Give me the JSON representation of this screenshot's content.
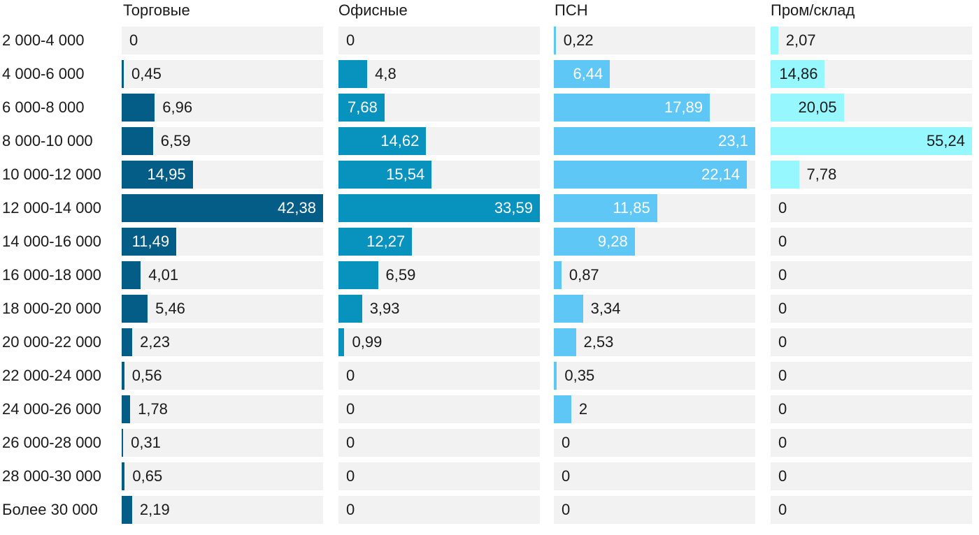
{
  "chart_data": {
    "type": "bar",
    "orientation": "horizontal",
    "title": "",
    "xlabel": "",
    "ylabel": "",
    "categories": [
      "2 000-4 000",
      "4 000-6 000",
      "6 000-8 000",
      "8 000-10 000",
      "10 000-12 000",
      "12 000-14 000",
      "14 000-16 000",
      "16 000-18 000",
      "18 000-20 000",
      "20 000-22 000",
      "22 000-24 000",
      "24 000-26 000",
      "26 000-28 000",
      "28 000-30 000",
      "Более 30 000"
    ],
    "series": [
      {
        "name": "Торговые",
        "color": "#035d87",
        "max": 42.38,
        "values": [
          0,
          0.45,
          6.96,
          6.59,
          14.95,
          42.38,
          11.49,
          4.01,
          5.46,
          2.23,
          0.56,
          1.78,
          0.31,
          0.65,
          2.19
        ],
        "labels": [
          "0",
          "0,45",
          "6,96",
          "6,59",
          "14,95",
          "42,38",
          "11,49",
          "4,01",
          "5,46",
          "2,23",
          "0,56",
          "1,78",
          "0,31",
          "0,65",
          "2,19"
        ]
      },
      {
        "name": "Офисные",
        "color": "#0893bf",
        "max": 33.59,
        "values": [
          0,
          4.8,
          7.68,
          14.62,
          15.54,
          33.59,
          12.27,
          6.59,
          3.93,
          0.99,
          0,
          0,
          0,
          0,
          0
        ],
        "labels": [
          "0",
          "4,8",
          "7,68",
          "14,62",
          "15,54",
          "33,59",
          "12,27",
          "6,59",
          "3,93",
          "0,99",
          "0",
          "0",
          "0",
          "0",
          "0"
        ]
      },
      {
        "name": "ПСН",
        "color": "#5ec7f5",
        "max": 23.1,
        "values": [
          0.22,
          6.44,
          17.89,
          23.1,
          22.14,
          11.85,
          9.28,
          0.87,
          3.34,
          2.53,
          0.35,
          2,
          0,
          0,
          0
        ],
        "labels": [
          "0,22",
          "6,44",
          "17,89",
          "23,1",
          "22,14",
          "11,85",
          "9,28",
          "0,87",
          "3,34",
          "2,53",
          "0,35",
          "2",
          "0",
          "0",
          "0"
        ]
      },
      {
        "name": "Пром/склад",
        "color": "#96f7ff",
        "max": 55.24,
        "values": [
          2.07,
          14.86,
          20.05,
          55.24,
          7.78,
          0,
          0,
          0,
          0,
          0,
          0,
          0,
          0,
          0,
          0
        ],
        "labels": [
          "2,07",
          "14,86",
          "20,05",
          "55,24",
          "7,78",
          "0",
          "0",
          "0",
          "0",
          "0",
          "0",
          "0",
          "0",
          "0",
          "0"
        ]
      }
    ],
    "track_color": "#f2f2f2",
    "text_color": "#1a1a1a",
    "grid": false,
    "legend": "none"
  }
}
